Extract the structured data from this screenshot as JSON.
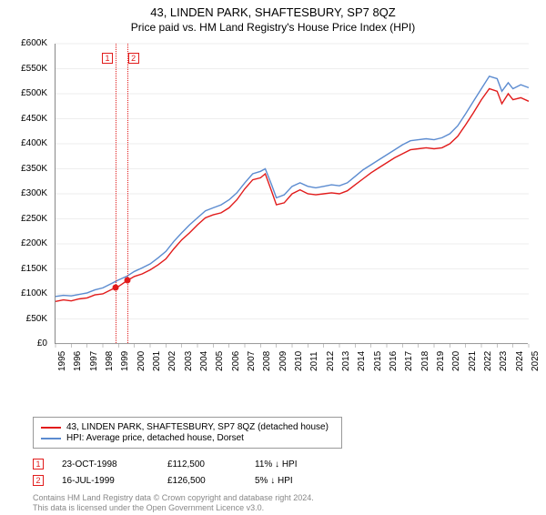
{
  "title": "43, LINDEN PARK, SHAFTESBURY, SP7 8QZ",
  "subtitle": "Price paid vs. HM Land Registry's House Price Index (HPI)",
  "chart": {
    "type": "line",
    "xlim": [
      1995,
      2025
    ],
    "ylim": [
      0,
      600000
    ],
    "ytick_step": 50000,
    "ytick_labels": [
      "£0",
      "£50K",
      "£100K",
      "£150K",
      "£200K",
      "£250K",
      "£300K",
      "£350K",
      "£400K",
      "£450K",
      "£500K",
      "£550K",
      "£600K"
    ],
    "xtick_step": 1,
    "xtick_labels": [
      "1995",
      "1996",
      "1997",
      "1998",
      "1999",
      "2000",
      "2001",
      "2002",
      "2003",
      "2004",
      "2005",
      "2006",
      "2007",
      "2008",
      "2009",
      "2010",
      "2011",
      "2012",
      "2013",
      "2014",
      "2015",
      "2016",
      "2017",
      "2018",
      "2019",
      "2020",
      "2021",
      "2022",
      "2023",
      "2024",
      "2025"
    ],
    "background_color": "#ffffff",
    "grid_color": "#dddddd",
    "axis_color": "#888888",
    "label_fontsize": 10,
    "series": [
      {
        "name": "property",
        "label": "43, LINDEN PARK, SHAFTESBURY, SP7 8QZ (detached house)",
        "color": "#e11b1b",
        "line_width": 1.4,
        "data": [
          [
            1995,
            85000
          ],
          [
            1995.5,
            88000
          ],
          [
            1996,
            86000
          ],
          [
            1996.5,
            90000
          ],
          [
            1997,
            92000
          ],
          [
            1997.5,
            98000
          ],
          [
            1998,
            100000
          ],
          [
            1998.5,
            108000
          ],
          [
            1998.81,
            112500
          ],
          [
            1999,
            115000
          ],
          [
            1999.54,
            126500
          ],
          [
            2000,
            135000
          ],
          [
            2000.5,
            140000
          ],
          [
            2001,
            148000
          ],
          [
            2001.5,
            158000
          ],
          [
            2002,
            170000
          ],
          [
            2002.5,
            190000
          ],
          [
            2003,
            208000
          ],
          [
            2003.5,
            222000
          ],
          [
            2004,
            238000
          ],
          [
            2004.5,
            252000
          ],
          [
            2005,
            258000
          ],
          [
            2005.5,
            262000
          ],
          [
            2006,
            272000
          ],
          [
            2006.5,
            288000
          ],
          [
            2007,
            310000
          ],
          [
            2007.5,
            328000
          ],
          [
            2008,
            332000
          ],
          [
            2008.3,
            340000
          ],
          [
            2008.7,
            305000
          ],
          [
            2009,
            278000
          ],
          [
            2009.5,
            282000
          ],
          [
            2010,
            300000
          ],
          [
            2010.5,
            308000
          ],
          [
            2011,
            300000
          ],
          [
            2011.5,
            298000
          ],
          [
            2012,
            300000
          ],
          [
            2012.5,
            302000
          ],
          [
            2013,
            300000
          ],
          [
            2013.5,
            306000
          ],
          [
            2014,
            318000
          ],
          [
            2014.5,
            330000
          ],
          [
            2015,
            342000
          ],
          [
            2015.5,
            352000
          ],
          [
            2016,
            362000
          ],
          [
            2016.5,
            372000
          ],
          [
            2017,
            380000
          ],
          [
            2017.5,
            388000
          ],
          [
            2018,
            390000
          ],
          [
            2018.5,
            392000
          ],
          [
            2019,
            390000
          ],
          [
            2019.5,
            392000
          ],
          [
            2020,
            400000
          ],
          [
            2020.5,
            415000
          ],
          [
            2021,
            438000
          ],
          [
            2021.5,
            462000
          ],
          [
            2022,
            488000
          ],
          [
            2022.5,
            510000
          ],
          [
            2023,
            505000
          ],
          [
            2023.3,
            480000
          ],
          [
            2023.7,
            500000
          ],
          [
            2024,
            488000
          ],
          [
            2024.5,
            492000
          ],
          [
            2025,
            485000
          ]
        ]
      },
      {
        "name": "hpi",
        "label": "HPI: Average price, detached house, Dorset",
        "color": "#5b8bd0",
        "line_width": 1.4,
        "data": [
          [
            1995,
            95000
          ],
          [
            1995.5,
            97000
          ],
          [
            1996,
            96000
          ],
          [
            1996.5,
            99000
          ],
          [
            1997,
            102000
          ],
          [
            1997.5,
            108000
          ],
          [
            1998,
            112000
          ],
          [
            1998.5,
            120000
          ],
          [
            1999,
            128000
          ],
          [
            1999.5,
            135000
          ],
          [
            2000,
            145000
          ],
          [
            2000.5,
            152000
          ],
          [
            2001,
            160000
          ],
          [
            2001.5,
            172000
          ],
          [
            2002,
            185000
          ],
          [
            2002.5,
            205000
          ],
          [
            2003,
            222000
          ],
          [
            2003.5,
            238000
          ],
          [
            2004,
            252000
          ],
          [
            2004.5,
            266000
          ],
          [
            2005,
            272000
          ],
          [
            2005.5,
            278000
          ],
          [
            2006,
            288000
          ],
          [
            2006.5,
            302000
          ],
          [
            2007,
            322000
          ],
          [
            2007.5,
            340000
          ],
          [
            2008,
            345000
          ],
          [
            2008.3,
            350000
          ],
          [
            2008.7,
            318000
          ],
          [
            2009,
            292000
          ],
          [
            2009.5,
            298000
          ],
          [
            2010,
            315000
          ],
          [
            2010.5,
            322000
          ],
          [
            2011,
            315000
          ],
          [
            2011.5,
            312000
          ],
          [
            2012,
            315000
          ],
          [
            2012.5,
            318000
          ],
          [
            2013,
            316000
          ],
          [
            2013.5,
            322000
          ],
          [
            2014,
            335000
          ],
          [
            2014.5,
            348000
          ],
          [
            2015,
            358000
          ],
          [
            2015.5,
            368000
          ],
          [
            2016,
            378000
          ],
          [
            2016.5,
            388000
          ],
          [
            2017,
            398000
          ],
          [
            2017.5,
            406000
          ],
          [
            2018,
            408000
          ],
          [
            2018.5,
            410000
          ],
          [
            2019,
            408000
          ],
          [
            2019.5,
            412000
          ],
          [
            2020,
            420000
          ],
          [
            2020.5,
            436000
          ],
          [
            2021,
            460000
          ],
          [
            2021.5,
            485000
          ],
          [
            2022,
            510000
          ],
          [
            2022.5,
            535000
          ],
          [
            2023,
            530000
          ],
          [
            2023.3,
            505000
          ],
          [
            2023.7,
            522000
          ],
          [
            2024,
            510000
          ],
          [
            2024.5,
            518000
          ],
          [
            2025,
            512000
          ]
        ]
      }
    ],
    "sale_markers": [
      {
        "num": "1",
        "color": "#e11b1b",
        "x": 1998.81,
        "y": 112500
      },
      {
        "num": "2",
        "color": "#e11b1b",
        "x": 1999.54,
        "y": 126500
      }
    ],
    "callouts": [
      {
        "num": "1",
        "color": "#e11b1b",
        "x": 1998.81
      },
      {
        "num": "2",
        "color": "#e11b1b",
        "x": 1999.54
      }
    ]
  },
  "legend": {
    "rows": [
      {
        "color": "#e11b1b",
        "label": "43, LINDEN PARK, SHAFTESBURY, SP7 8QZ (detached house)"
      },
      {
        "color": "#5b8bd0",
        "label": "HPI: Average price, detached house, Dorset"
      }
    ]
  },
  "sales_table": {
    "rows": [
      {
        "num": "1",
        "color": "#e11b1b",
        "date": "23-OCT-1998",
        "price": "£112,500",
        "delta": "11% ↓ HPI"
      },
      {
        "num": "2",
        "color": "#e11b1b",
        "date": "16-JUL-1999",
        "price": "£126,500",
        "delta": "5% ↓ HPI"
      }
    ]
  },
  "footer": {
    "line1": "Contains HM Land Registry data © Crown copyright and database right 2024.",
    "line2": "This data is licensed under the Open Government Licence v3.0."
  }
}
